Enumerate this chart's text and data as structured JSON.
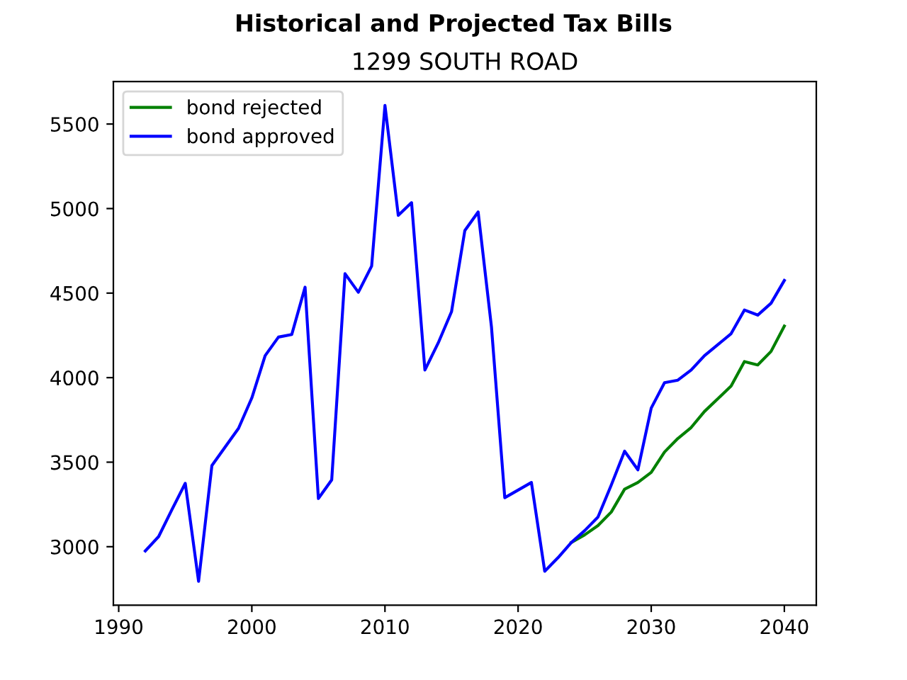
{
  "chart_data": {
    "type": "line",
    "title": "Historical and Projected Tax Bills",
    "subtitle": "1299 SOUTH ROAD",
    "xlim": [
      1989.6,
      2042.4
    ],
    "xticks": [
      1990,
      2000,
      2010,
      2020,
      2030,
      2040
    ],
    "ylim": [
      2654,
      5751
    ],
    "yticks": [
      3000,
      3500,
      4000,
      4500,
      5000,
      5500
    ],
    "legend": "top left",
    "grid": false,
    "series": [
      {
        "name": "bond rejected",
        "color": "#008000",
        "x": [
          2024,
          2025,
          2026,
          2027,
          2028,
          2029,
          2030,
          2031,
          2032,
          2033,
          2034,
          2035,
          2036,
          2037,
          2038,
          2039,
          2040
        ],
        "values": [
          3025,
          3070,
          3125,
          3205,
          3340,
          3380,
          3440,
          3560,
          3640,
          3705,
          3800,
          3875,
          3950,
          4095,
          4075,
          4155,
          4305
        ]
      },
      {
        "name": "bond approved",
        "color": "#0000ff",
        "x": [
          1992,
          1993,
          1994,
          1995,
          1996,
          1997,
          1998,
          1999,
          2000,
          2001,
          2002,
          2003,
          2004,
          2005,
          2006,
          2007,
          2008,
          2009,
          2010,
          2011,
          2012,
          2013,
          2014,
          2015,
          2016,
          2017,
          2018,
          2019,
          2020,
          2021,
          2022,
          2023,
          2024,
          2025,
          2026,
          2027,
          2028,
          2029,
          2030,
          2031,
          2032,
          2033,
          2034,
          2035,
          2036,
          2037,
          2038,
          2039,
          2040
        ],
        "values": [
          2975,
          3060,
          3220,
          3375,
          2795,
          3480,
          3590,
          3700,
          3880,
          4130,
          4240,
          4255,
          4535,
          3285,
          3395,
          4615,
          4505,
          4660,
          5610,
          4960,
          5035,
          4045,
          4205,
          4390,
          4870,
          4980,
          4300,
          3290,
          3335,
          3380,
          2855,
          2935,
          3025,
          3095,
          3175,
          3365,
          3565,
          3455,
          3820,
          3970,
          3985,
          4045,
          4130,
          4195,
          4260,
          4400,
          4370,
          4440,
          4575
        ]
      }
    ]
  }
}
